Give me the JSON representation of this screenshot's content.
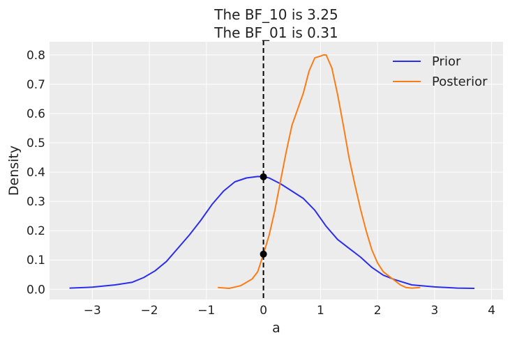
{
  "chart_data": {
    "type": "line",
    "title_lines": [
      "The BF_10 is 3.25",
      "The BF_01 is 0.31"
    ],
    "xlabel": "a",
    "ylabel": "Density",
    "xlim": [
      -3.75,
      4.2
    ],
    "ylim": [
      -0.035,
      0.845
    ],
    "xticks": [
      -3,
      -2,
      -1,
      0,
      1,
      2,
      3,
      4
    ],
    "xtick_labels": [
      "−3",
      "−2",
      "−1",
      "0",
      "1",
      "2",
      "3",
      "4"
    ],
    "yticks": [
      0.0,
      0.1,
      0.2,
      0.3,
      0.4,
      0.5,
      0.6,
      0.7,
      0.8
    ],
    "ytick_labels": [
      "0.0",
      "0.1",
      "0.2",
      "0.3",
      "0.4",
      "0.5",
      "0.6",
      "0.7",
      "0.8"
    ],
    "grid": true,
    "background": "#ececec",
    "legend_position": "top-right",
    "series": [
      {
        "name": "Prior",
        "color": "#2a2eec",
        "points": [
          [
            -3.4,
            0.004
          ],
          [
            -3.0,
            0.007
          ],
          [
            -2.6,
            0.015
          ],
          [
            -2.3,
            0.024
          ],
          [
            -2.1,
            0.04
          ],
          [
            -1.9,
            0.063
          ],
          [
            -1.7,
            0.095
          ],
          [
            -1.5,
            0.14
          ],
          [
            -1.3,
            0.185
          ],
          [
            -1.1,
            0.235
          ],
          [
            -0.9,
            0.29
          ],
          [
            -0.7,
            0.335
          ],
          [
            -0.5,
            0.367
          ],
          [
            -0.3,
            0.38
          ],
          [
            -0.1,
            0.385
          ],
          [
            0.0,
            0.384
          ],
          [
            0.1,
            0.38
          ],
          [
            0.3,
            0.36
          ],
          [
            0.5,
            0.335
          ],
          [
            0.7,
            0.31
          ],
          [
            0.9,
            0.27
          ],
          [
            1.1,
            0.215
          ],
          [
            1.3,
            0.17
          ],
          [
            1.5,
            0.14
          ],
          [
            1.7,
            0.11
          ],
          [
            1.9,
            0.075
          ],
          [
            2.1,
            0.048
          ],
          [
            2.3,
            0.033
          ],
          [
            2.6,
            0.015
          ],
          [
            3.0,
            0.008
          ],
          [
            3.4,
            0.004
          ],
          [
            3.7,
            0.003
          ]
        ]
      },
      {
        "name": "Posterior",
        "color": "#fa7c17",
        "points": [
          [
            -0.8,
            0.006
          ],
          [
            -0.6,
            0.003
          ],
          [
            -0.4,
            0.012
          ],
          [
            -0.2,
            0.035
          ],
          [
            -0.1,
            0.06
          ],
          [
            0.0,
            0.12
          ],
          [
            0.1,
            0.185
          ],
          [
            0.2,
            0.27
          ],
          [
            0.3,
            0.37
          ],
          [
            0.4,
            0.47
          ],
          [
            0.5,
            0.56
          ],
          [
            0.6,
            0.615
          ],
          [
            0.7,
            0.67
          ],
          [
            0.8,
            0.745
          ],
          [
            0.9,
            0.79
          ],
          [
            1.0,
            0.796
          ],
          [
            1.05,
            0.8
          ],
          [
            1.1,
            0.8
          ],
          [
            1.2,
            0.755
          ],
          [
            1.3,
            0.665
          ],
          [
            1.4,
            0.56
          ],
          [
            1.5,
            0.45
          ],
          [
            1.6,
            0.36
          ],
          [
            1.7,
            0.275
          ],
          [
            1.8,
            0.2
          ],
          [
            1.9,
            0.135
          ],
          [
            2.0,
            0.09
          ],
          [
            2.1,
            0.06
          ],
          [
            2.2,
            0.045
          ],
          [
            2.3,
            0.03
          ],
          [
            2.4,
            0.015
          ],
          [
            2.5,
            0.006
          ],
          [
            2.6,
            0.004
          ],
          [
            2.75,
            0.006
          ]
        ]
      }
    ],
    "reference_line": {
      "x": 0,
      "color": "#000000",
      "style": "dashed"
    },
    "markers": [
      {
        "x": 0,
        "y": 0.384,
        "color": "#000000"
      },
      {
        "x": 0,
        "y": 0.12,
        "color": "#000000"
      }
    ]
  }
}
